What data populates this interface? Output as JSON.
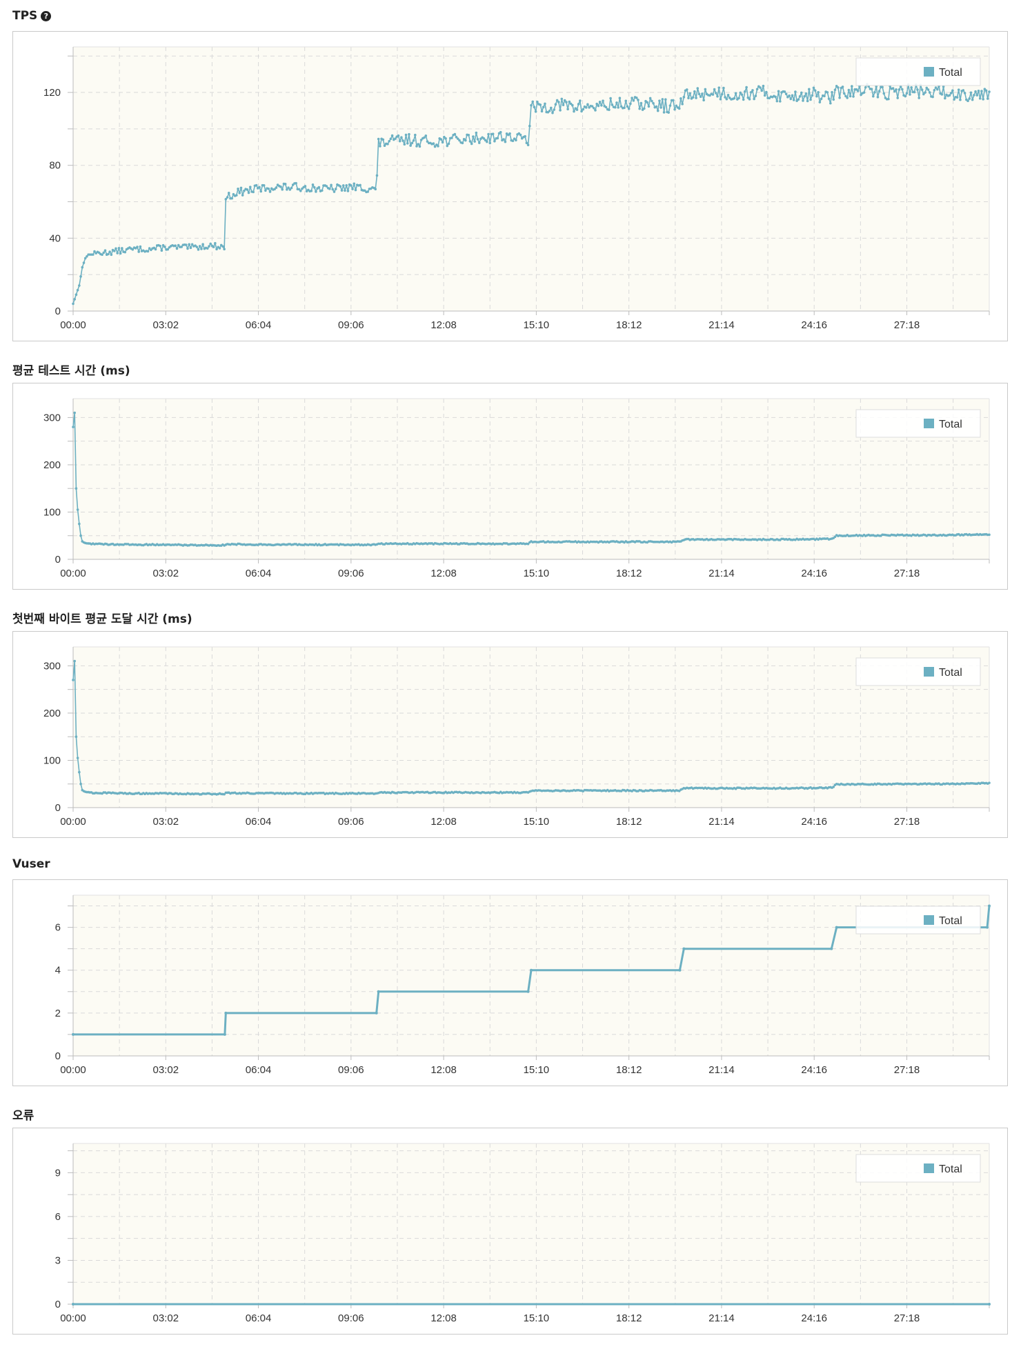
{
  "colors": {
    "series": "#6cb0c2",
    "plot_bg": "#fcfbf4",
    "grid": "#d9d9d9",
    "axis": "#bbbbbb",
    "panel_border": "#c9c9c9"
  },
  "help_icon": {
    "name": "question-circle-icon",
    "glyph": "?"
  },
  "charts": [
    {
      "id": "tps",
      "title": "TPS",
      "has_help": true,
      "legend": "Total",
      "x_ticks": [
        "00:00",
        "03:02",
        "06:04",
        "09:06",
        "12:08",
        "15:10",
        "18:12",
        "21:14",
        "24:16",
        "27:18"
      ],
      "y_ticks": [
        "0",
        "40",
        "80",
        "120"
      ]
    },
    {
      "id": "avg-test-time",
      "title": "평균 테스트 시간 (ms)",
      "has_help": false,
      "legend": "Total",
      "x_ticks": [
        "00:00",
        "03:02",
        "06:04",
        "09:06",
        "12:08",
        "15:10",
        "18:12",
        "21:14",
        "24:16",
        "27:18"
      ],
      "y_ticks": [
        "0",
        "100",
        "200",
        "300"
      ]
    },
    {
      "id": "first-byte-time",
      "title": "첫번째 바이트 평균 도달 시간 (ms)",
      "has_help": false,
      "legend": "Total",
      "x_ticks": [
        "00:00",
        "03:02",
        "06:04",
        "09:06",
        "12:08",
        "15:10",
        "18:12",
        "21:14",
        "24:16",
        "27:18"
      ],
      "y_ticks": [
        "0",
        "100",
        "200",
        "300"
      ]
    },
    {
      "id": "vuser",
      "title": "Vuser",
      "has_help": false,
      "legend": "Total",
      "x_ticks": [
        "00:00",
        "03:02",
        "06:04",
        "09:06",
        "12:08",
        "15:10",
        "18:12",
        "21:14",
        "24:16",
        "27:18"
      ],
      "y_ticks": [
        "0",
        "2",
        "4",
        "6"
      ]
    },
    {
      "id": "errors",
      "title": "오류",
      "has_help": false,
      "legend": "Total",
      "x_ticks": [
        "00:00",
        "03:02",
        "06:04",
        "09:06",
        "12:08",
        "15:10",
        "18:12",
        "21:14",
        "24:16",
        "27:18"
      ],
      "y_ticks": [
        "0",
        "3",
        "6",
        "9"
      ]
    }
  ],
  "chart_data": [
    {
      "type": "line",
      "title": "TPS",
      "x_unit": "seconds",
      "xlim": [
        0,
        1800
      ],
      "ylim": [
        0,
        145
      ],
      "grid": true,
      "legend_position": "top-right",
      "series": [
        {
          "name": "Total",
          "x": [
            0,
            6,
            12,
            18,
            24,
            30,
            40,
            50,
            60,
            90,
            120,
            150,
            180,
            210,
            240,
            270,
            298,
            300,
            320,
            360,
            400,
            450,
            500,
            550,
            596,
            600,
            620,
            660,
            700,
            750,
            800,
            850,
            894,
            900,
            920,
            960,
            1000,
            1050,
            1100,
            1150,
            1192,
            1200,
            1220,
            1260,
            1300,
            1350,
            1400,
            1450,
            1490,
            1500,
            1520,
            1560,
            1600,
            1650,
            1700,
            1750,
            1800
          ],
          "y": [
            4,
            9,
            14,
            24,
            29,
            31,
            31,
            32,
            32,
            33,
            34,
            34,
            35,
            35,
            35,
            36,
            35,
            62,
            65,
            67,
            68,
            68,
            67,
            68,
            67,
            92,
            93,
            94,
            93,
            94,
            95,
            96,
            94,
            111,
            112,
            113,
            112,
            113,
            114,
            113,
            112,
            118,
            119,
            120,
            119,
            120,
            118,
            119,
            117,
            120,
            120,
            121,
            120,
            121,
            120,
            119,
            120
          ]
        }
      ]
    },
    {
      "type": "line",
      "title": "평균 테스트 시간 (ms)",
      "x_unit": "seconds",
      "xlim": [
        0,
        1800
      ],
      "ylim": [
        0,
        340
      ],
      "grid": true,
      "legend_position": "top-right",
      "series": [
        {
          "name": "Total",
          "x": [
            0,
            3,
            6,
            9,
            12,
            15,
            18,
            22,
            26,
            30,
            40,
            60,
            120,
            180,
            240,
            298,
            300,
            400,
            500,
            596,
            600,
            700,
            800,
            894,
            900,
            1000,
            1100,
            1192,
            1200,
            1300,
            1400,
            1490,
            1500,
            1600,
            1700,
            1800
          ],
          "y": [
            280,
            310,
            150,
            105,
            75,
            50,
            38,
            35,
            34,
            33,
            33,
            32,
            31,
            31,
            30,
            30,
            32,
            31,
            31,
            31,
            33,
            33,
            33,
            33,
            37,
            37,
            37,
            37,
            42,
            42,
            42,
            43,
            50,
            51,
            51,
            53
          ]
        }
      ]
    },
    {
      "type": "line",
      "title": "첫번째 바이트 평균 도달 시간 (ms)",
      "x_unit": "seconds",
      "xlim": [
        0,
        1800
      ],
      "ylim": [
        0,
        340
      ],
      "grid": true,
      "legend_position": "top-right",
      "series": [
        {
          "name": "Total",
          "x": [
            0,
            3,
            6,
            9,
            12,
            15,
            18,
            22,
            26,
            30,
            40,
            60,
            120,
            180,
            240,
            298,
            300,
            400,
            500,
            596,
            600,
            700,
            800,
            894,
            900,
            1000,
            1100,
            1192,
            1200,
            1300,
            1400,
            1490,
            1500,
            1600,
            1700,
            1800
          ],
          "y": [
            270,
            310,
            150,
            105,
            75,
            50,
            37,
            34,
            33,
            32,
            31,
            31,
            30,
            30,
            29,
            29,
            31,
            30,
            30,
            30,
            32,
            32,
            32,
            32,
            36,
            36,
            36,
            36,
            41,
            41,
            41,
            42,
            49,
            50,
            50,
            52
          ]
        }
      ]
    },
    {
      "type": "line",
      "title": "Vuser",
      "x_unit": "seconds",
      "xlim": [
        0,
        1800
      ],
      "ylim": [
        0,
        7.5
      ],
      "grid": true,
      "legend_position": "top-right",
      "series": [
        {
          "name": "Total",
          "x": [
            0,
            298,
            300,
            596,
            600,
            894,
            900,
            1192,
            1200,
            1490,
            1500,
            1796,
            1800
          ],
          "y": [
            1,
            1,
            2,
            2,
            3,
            3,
            4,
            4,
            5,
            5,
            6,
            6,
            7
          ]
        }
      ]
    },
    {
      "type": "line",
      "title": "오류",
      "x_unit": "seconds",
      "xlim": [
        0,
        1800
      ],
      "ylim": [
        0,
        11
      ],
      "grid": true,
      "legend_position": "top-right",
      "series": [
        {
          "name": "Total",
          "x": [
            0,
            1800
          ],
          "y": [
            0,
            0
          ]
        }
      ]
    }
  ]
}
